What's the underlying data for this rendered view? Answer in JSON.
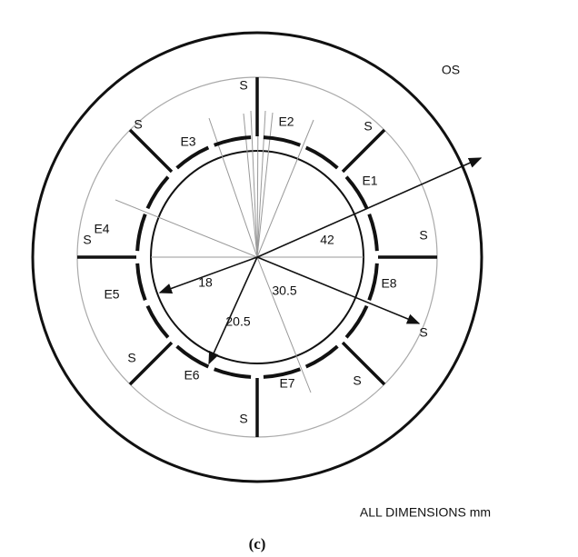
{
  "labels": {
    "os": "OS",
    "spokes": [
      "S",
      "S",
      "S",
      "S",
      "S",
      "S",
      "S",
      "S",
      "S"
    ],
    "segments": [
      "E1",
      "E2",
      "E3",
      "E4",
      "E5",
      "E6",
      "E7",
      "E8"
    ],
    "dimensions": [
      42,
      18,
      30.5,
      20.5
    ],
    "note": "ALL DIMENSIONS mm",
    "caption": "(c)"
  }
}
